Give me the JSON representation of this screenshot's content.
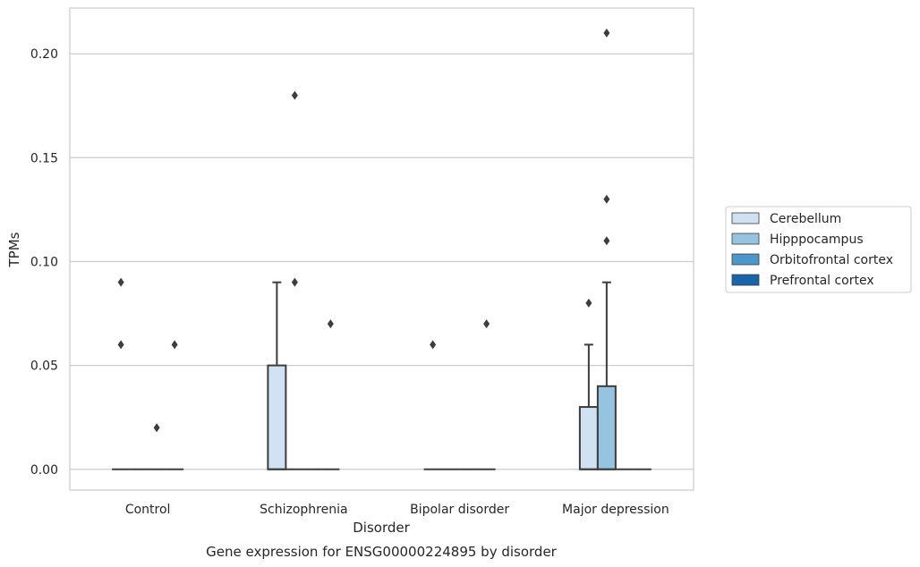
{
  "chart_data": {
    "type": "box",
    "title": "",
    "xlabel": "Disorder",
    "ylabel": "TPMs",
    "caption": "Gene expression for ENSG00000224895 by disorder",
    "categories": [
      "Control",
      "Schizophrenia",
      "Bipolar disorder",
      "Major depression"
    ],
    "ylim": [
      -0.01,
      0.222
    ],
    "yticks": [
      0.0,
      0.05,
      0.1,
      0.15,
      0.2
    ],
    "ytick_labels": [
      "0.00",
      "0.05",
      "0.10",
      "0.15",
      "0.20"
    ],
    "grid": "horizontal",
    "legend_position": "right",
    "series": [
      {
        "name": "Cerebellum",
        "color": "#d0e1f2",
        "boxes": [
          {
            "q1": 0.0,
            "median": 0.0,
            "q3": 0.0,
            "whisker_low": 0.0,
            "whisker_high": 0.0,
            "outliers": [
              0.09,
              0.06
            ]
          },
          {
            "q1": 0.0,
            "median": 0.0,
            "q3": 0.05,
            "whisker_low": 0.0,
            "whisker_high": 0.09,
            "outliers": []
          },
          {
            "q1": 0.0,
            "median": 0.0,
            "q3": 0.0,
            "whisker_low": 0.0,
            "whisker_high": 0.0,
            "outliers": [
              0.06
            ]
          },
          {
            "q1": 0.0,
            "median": 0.0,
            "q3": 0.03,
            "whisker_low": 0.0,
            "whisker_high": 0.06,
            "outliers": [
              0.08
            ]
          }
        ]
      },
      {
        "name": "Hipppocampus",
        "color": "#94c4df",
        "boxes": [
          {
            "q1": 0.0,
            "median": 0.0,
            "q3": 0.0,
            "whisker_low": 0.0,
            "whisker_high": 0.0,
            "outliers": []
          },
          {
            "q1": 0.0,
            "median": 0.0,
            "q3": 0.0,
            "whisker_low": 0.0,
            "whisker_high": 0.0,
            "outliers": [
              0.18,
              0.09
            ]
          },
          {
            "q1": 0.0,
            "median": 0.0,
            "q3": 0.0,
            "whisker_low": 0.0,
            "whisker_high": 0.0,
            "outliers": []
          },
          {
            "q1": 0.0,
            "median": 0.0,
            "q3": 0.04,
            "whisker_low": 0.0,
            "whisker_high": 0.09,
            "outliers": [
              0.21,
              0.13,
              0.11
            ]
          }
        ]
      },
      {
        "name": "Orbitofrontal cortex",
        "color": "#4a98c9",
        "boxes": [
          {
            "q1": 0.0,
            "median": 0.0,
            "q3": 0.0,
            "whisker_low": 0.0,
            "whisker_high": 0.0,
            "outliers": [
              0.02
            ]
          },
          {
            "q1": 0.0,
            "median": 0.0,
            "q3": 0.0,
            "whisker_low": 0.0,
            "whisker_high": 0.0,
            "outliers": []
          },
          {
            "q1": 0.0,
            "median": 0.0,
            "q3": 0.0,
            "whisker_low": 0.0,
            "whisker_high": 0.0,
            "outliers": []
          },
          {
            "q1": 0.0,
            "median": 0.0,
            "q3": 0.0,
            "whisker_low": 0.0,
            "whisker_high": 0.0,
            "outliers": []
          }
        ]
      },
      {
        "name": "Prefrontal cortex",
        "color": "#1764ab",
        "boxes": [
          {
            "q1": 0.0,
            "median": 0.0,
            "q3": 0.0,
            "whisker_low": 0.0,
            "whisker_high": 0.0,
            "outliers": [
              0.06
            ]
          },
          {
            "q1": 0.0,
            "median": 0.0,
            "q3": 0.0,
            "whisker_low": 0.0,
            "whisker_high": 0.0,
            "outliers": [
              0.07
            ]
          },
          {
            "q1": 0.0,
            "median": 0.0,
            "q3": 0.0,
            "whisker_low": 0.0,
            "whisker_high": 0.0,
            "outliers": [
              0.07
            ]
          },
          {
            "q1": 0.0,
            "median": 0.0,
            "q3": 0.0,
            "whisker_low": 0.0,
            "whisker_high": 0.0,
            "outliers": []
          }
        ]
      }
    ]
  },
  "colors": {
    "grid": "#cccccc",
    "frame": "#cccccc",
    "box_edge": "#3d3d3d",
    "outlier": "#3d3d3d"
  }
}
